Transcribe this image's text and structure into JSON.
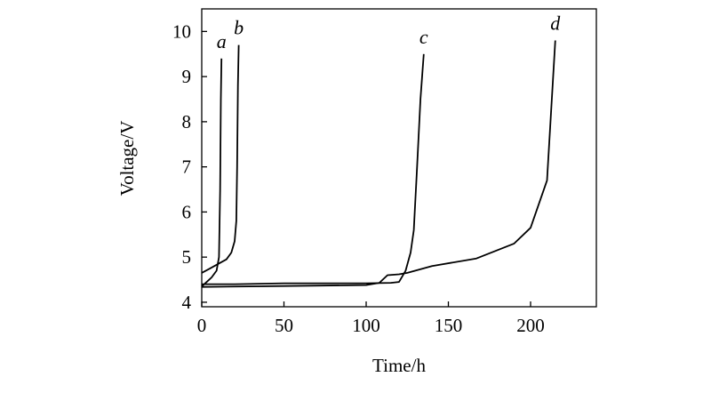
{
  "chart_data": {
    "type": "line",
    "title": "",
    "xlabel": "Time/h",
    "ylabel": "Voltage/V",
    "xlim": [
      0,
      240
    ],
    "ylim": [
      3.9,
      10.5
    ],
    "xticks": [
      0,
      50,
      100,
      150,
      200
    ],
    "yticks": [
      4,
      5,
      6,
      7,
      8,
      9,
      10
    ],
    "grid": false,
    "legend": "none",
    "line_color": "#000000",
    "series": [
      {
        "name": "a",
        "x": [
          0,
          3,
          6,
          9,
          10.5,
          11.2,
          11.6,
          12
        ],
        "y": [
          4.35,
          4.45,
          4.55,
          4.7,
          5.0,
          6.5,
          8.5,
          9.4
        ]
      },
      {
        "name": "b",
        "x": [
          0,
          5,
          10,
          15,
          18,
          20,
          21,
          21.5,
          22,
          22.5
        ],
        "y": [
          4.65,
          4.75,
          4.85,
          4.95,
          5.1,
          5.35,
          5.8,
          7.0,
          8.8,
          9.7
        ]
      },
      {
        "name": "c",
        "x": [
          0,
          20,
          50,
          80,
          100,
          115,
          120,
          124,
          127,
          129,
          131,
          133,
          135
        ],
        "y": [
          4.4,
          4.4,
          4.42,
          4.42,
          4.42,
          4.43,
          4.45,
          4.7,
          5.1,
          5.6,
          7.0,
          8.5,
          9.5
        ]
      },
      {
        "name": "d",
        "x": [
          0,
          50,
          100,
          108,
          113,
          120,
          125,
          140,
          167,
          190,
          200,
          210,
          215
        ],
        "y": [
          4.34,
          4.36,
          4.38,
          4.43,
          4.6,
          4.62,
          4.65,
          4.8,
          4.97,
          5.3,
          5.65,
          6.7,
          9.8
        ]
      }
    ]
  }
}
